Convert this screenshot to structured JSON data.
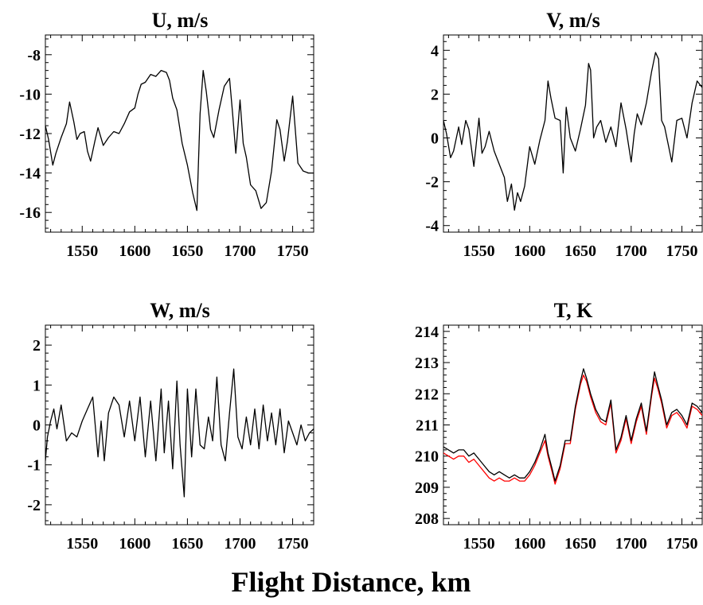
{
  "figure": {
    "xlabel": "Flight Distance, km"
  },
  "chart_data": [
    {
      "type": "line",
      "title": "U, m/s",
      "xlim": [
        1515,
        1770
      ],
      "ylim": [
        -17,
        -7
      ],
      "xticks": [
        1550,
        1600,
        1650,
        1700,
        1750
      ],
      "yticks": [
        -16,
        -14,
        -12,
        -10,
        -8
      ],
      "grid": false,
      "series": [
        {
          "color": "#000000",
          "x": [
            1515,
            1518,
            1522,
            1525,
            1530,
            1535,
            1538,
            1542,
            1545,
            1548,
            1552,
            1555,
            1558,
            1562,
            1565,
            1570,
            1575,
            1580,
            1585,
            1590,
            1595,
            1600,
            1603,
            1606,
            1610,
            1615,
            1620,
            1625,
            1630,
            1633,
            1636,
            1640,
            1645,
            1650,
            1655,
            1659,
            1662,
            1665,
            1668,
            1672,
            1675,
            1680,
            1685,
            1690,
            1693,
            1696,
            1700,
            1703,
            1706,
            1710,
            1715,
            1720,
            1725,
            1730,
            1735,
            1738,
            1742,
            1745,
            1750,
            1755,
            1760,
            1765,
            1770
          ],
          "y": [
            -11.6,
            -12.3,
            -13.6,
            -13.0,
            -12.2,
            -11.5,
            -10.4,
            -11.4,
            -12.3,
            -12.0,
            -11.9,
            -12.9,
            -13.4,
            -12.4,
            -11.7,
            -12.6,
            -12.2,
            -11.9,
            -12.0,
            -11.5,
            -10.9,
            -10.7,
            -10.0,
            -9.5,
            -9.4,
            -9.0,
            -9.1,
            -8.8,
            -8.9,
            -9.3,
            -10.2,
            -10.8,
            -12.5,
            -13.6,
            -15.0,
            -15.9,
            -11.0,
            -8.8,
            -9.9,
            -11.8,
            -12.2,
            -10.8,
            -9.6,
            -9.2,
            -11.0,
            -13.0,
            -10.3,
            -12.5,
            -13.2,
            -14.6,
            -14.9,
            -15.8,
            -15.5,
            -13.9,
            -11.3,
            -11.8,
            -13.4,
            -12.4,
            -10.1,
            -13.5,
            -13.9,
            -14.0,
            -14.0
          ]
        }
      ]
    },
    {
      "type": "line",
      "title": "V, m/s",
      "xlim": [
        1515,
        1770
      ],
      "ylim": [
        -4.3,
        4.7
      ],
      "xticks": [
        1550,
        1600,
        1650,
        1700,
        1750
      ],
      "yticks": [
        -4,
        -2,
        0,
        2,
        4
      ],
      "grid": false,
      "series": [
        {
          "color": "#000000",
          "x": [
            1515,
            1518,
            1522,
            1525,
            1530,
            1533,
            1537,
            1540,
            1545,
            1550,
            1553,
            1556,
            1560,
            1565,
            1570,
            1575,
            1578,
            1582,
            1585,
            1588,
            1591,
            1595,
            1600,
            1605,
            1610,
            1615,
            1618,
            1621,
            1625,
            1630,
            1633,
            1636,
            1640,
            1645,
            1650,
            1655,
            1658,
            1660,
            1663,
            1666,
            1670,
            1675,
            1680,
            1685,
            1690,
            1695,
            1700,
            1703,
            1706,
            1710,
            1715,
            1720,
            1724,
            1727,
            1730,
            1733,
            1737,
            1740,
            1745,
            1750,
            1755,
            1760,
            1765,
            1770
          ],
          "y": [
            0.8,
            0.2,
            -0.9,
            -0.6,
            0.5,
            -0.3,
            0.8,
            0.4,
            -1.3,
            0.9,
            -0.7,
            -0.4,
            0.3,
            -0.6,
            -1.2,
            -1.8,
            -2.9,
            -2.1,
            -3.3,
            -2.5,
            -2.9,
            -2.2,
            -0.4,
            -1.2,
            -0.1,
            0.8,
            2.6,
            1.8,
            0.9,
            0.8,
            -1.6,
            1.4,
            0.0,
            -0.6,
            0.4,
            1.5,
            3.4,
            3.1,
            0.0,
            0.5,
            0.8,
            -0.2,
            0.5,
            -0.4,
            1.6,
            0.4,
            -1.1,
            0.2,
            1.1,
            0.6,
            1.6,
            3.0,
            3.9,
            3.6,
            0.8,
            0.5,
            -0.4,
            -1.1,
            0.8,
            0.9,
            0.0,
            1.6,
            2.6,
            2.3
          ]
        }
      ]
    },
    {
      "type": "line",
      "title": "W, m/s",
      "xlim": [
        1515,
        1770
      ],
      "ylim": [
        -2.5,
        2.5
      ],
      "xticks": [
        1550,
        1600,
        1650,
        1700,
        1750
      ],
      "yticks": [
        -2,
        -1,
        0,
        1,
        2
      ],
      "grid": false,
      "series": [
        {
          "color": "#000000",
          "x": [
            1515,
            1517,
            1520,
            1523,
            1526,
            1530,
            1535,
            1540,
            1545,
            1550,
            1555,
            1560,
            1565,
            1568,
            1571,
            1575,
            1580,
            1585,
            1590,
            1595,
            1600,
            1605,
            1610,
            1615,
            1620,
            1625,
            1628,
            1632,
            1636,
            1640,
            1643,
            1647,
            1650,
            1654,
            1658,
            1662,
            1666,
            1670,
            1674,
            1678,
            1682,
            1686,
            1690,
            1694,
            1698,
            1702,
            1706,
            1710,
            1714,
            1718,
            1722,
            1726,
            1730,
            1734,
            1738,
            1742,
            1746,
            1750,
            1754,
            1758,
            1762,
            1766,
            1770
          ],
          "y": [
            -0.9,
            -0.3,
            0.1,
            0.4,
            -0.1,
            0.5,
            -0.4,
            -0.2,
            -0.3,
            0.1,
            0.4,
            0.7,
            -0.8,
            0.1,
            -0.9,
            0.3,
            0.7,
            0.5,
            -0.3,
            0.6,
            -0.4,
            0.7,
            -0.8,
            0.6,
            -0.9,
            0.9,
            -0.7,
            0.6,
            -1.1,
            1.1,
            -0.5,
            -1.8,
            0.9,
            -0.8,
            0.9,
            -0.5,
            -0.6,
            0.2,
            -0.4,
            1.2,
            -0.5,
            -0.9,
            0.3,
            1.4,
            -0.3,
            -0.6,
            0.2,
            -0.5,
            0.4,
            -0.6,
            0.5,
            -0.4,
            0.3,
            -0.5,
            0.4,
            -0.7,
            0.1,
            -0.2,
            -0.5,
            0.0,
            -0.4,
            -0.2,
            -0.1
          ]
        }
      ]
    },
    {
      "type": "line",
      "title": "T, K",
      "xlim": [
        1515,
        1770
      ],
      "ylim": [
        207.8,
        214.2
      ],
      "xticks": [
        1550,
        1600,
        1650,
        1700,
        1750
      ],
      "yticks": [
        208,
        209,
        210,
        211,
        212,
        213,
        214
      ],
      "grid": false,
      "series": [
        {
          "color": "#000000",
          "x": [
            1515,
            1520,
            1525,
            1530,
            1535,
            1540,
            1545,
            1550,
            1555,
            1560,
            1565,
            1570,
            1575,
            1580,
            1585,
            1590,
            1595,
            1600,
            1605,
            1610,
            1615,
            1618,
            1622,
            1625,
            1630,
            1635,
            1640,
            1645,
            1650,
            1653,
            1656,
            1660,
            1665,
            1670,
            1675,
            1680,
            1685,
            1690,
            1695,
            1700,
            1705,
            1710,
            1715,
            1720,
            1723,
            1726,
            1730,
            1735,
            1740,
            1745,
            1750,
            1755,
            1760,
            1765,
            1770
          ],
          "y": [
            210.3,
            210.2,
            210.1,
            210.2,
            210.2,
            210.0,
            210.1,
            209.9,
            209.7,
            209.5,
            209.4,
            209.5,
            209.4,
            209.3,
            209.4,
            209.3,
            209.3,
            209.5,
            209.8,
            210.2,
            210.7,
            210.1,
            209.6,
            209.2,
            209.7,
            210.5,
            210.5,
            211.6,
            212.4,
            212.8,
            212.5,
            212.0,
            211.5,
            211.2,
            211.1,
            211.8,
            210.2,
            210.6,
            211.3,
            210.5,
            211.2,
            211.7,
            210.8,
            212.0,
            212.7,
            212.3,
            211.8,
            211.0,
            211.4,
            211.5,
            211.3,
            211.0,
            211.7,
            211.6,
            211.4
          ]
        },
        {
          "color": "#ff0000",
          "x": [
            1515,
            1520,
            1525,
            1530,
            1535,
            1540,
            1545,
            1550,
            1555,
            1560,
            1565,
            1570,
            1575,
            1580,
            1585,
            1590,
            1595,
            1600,
            1605,
            1610,
            1615,
            1618,
            1622,
            1625,
            1630,
            1635,
            1640,
            1645,
            1650,
            1653,
            1656,
            1660,
            1665,
            1670,
            1675,
            1680,
            1685,
            1690,
            1695,
            1700,
            1705,
            1710,
            1715,
            1720,
            1723,
            1726,
            1730,
            1735,
            1740,
            1745,
            1750,
            1755,
            1760,
            1765,
            1770
          ],
          "y": [
            210.1,
            210.0,
            209.9,
            210.0,
            210.0,
            209.8,
            209.9,
            209.7,
            209.5,
            209.3,
            209.2,
            209.3,
            209.2,
            209.2,
            209.3,
            209.2,
            209.2,
            209.4,
            209.7,
            210.1,
            210.5,
            210.0,
            209.5,
            209.1,
            209.6,
            210.4,
            210.4,
            211.5,
            212.3,
            212.6,
            212.4,
            211.9,
            211.4,
            211.1,
            211.0,
            211.7,
            210.1,
            210.5,
            211.2,
            210.4,
            211.1,
            211.6,
            210.7,
            211.9,
            212.5,
            212.2,
            211.7,
            210.9,
            211.3,
            211.4,
            211.2,
            210.9,
            211.6,
            211.5,
            211.3
          ]
        }
      ]
    }
  ]
}
